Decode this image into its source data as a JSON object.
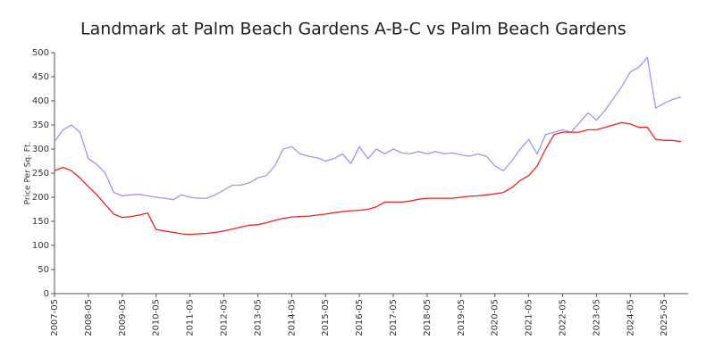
{
  "chart_data": {
    "type": "line",
    "title": "Landmark at Palm Beach Gardens A-B-C vs Palm Beach Gardens",
    "ylabel": "Price Per Sq. Ft.",
    "categories": [
      "2007-05",
      "2007-08",
      "2007-11",
      "2008-02",
      "2008-05",
      "2008-08",
      "2008-11",
      "2009-02",
      "2009-05",
      "2009-08",
      "2009-11",
      "2010-02",
      "2010-05",
      "2010-08",
      "2010-11",
      "2011-02",
      "2011-05",
      "2011-08",
      "2011-11",
      "2012-02",
      "2012-05",
      "2012-08",
      "2012-11",
      "2013-02",
      "2013-05",
      "2013-08",
      "2013-11",
      "2014-02",
      "2014-05",
      "2014-08",
      "2014-11",
      "2015-02",
      "2015-05",
      "2015-08",
      "2015-11",
      "2016-02",
      "2016-05",
      "2016-08",
      "2016-11",
      "2017-02",
      "2017-05",
      "2017-08",
      "2017-11",
      "2018-02",
      "2018-05",
      "2018-08",
      "2018-11",
      "2019-02",
      "2019-05",
      "2019-08",
      "2019-11",
      "2020-02",
      "2020-05",
      "2020-08",
      "2020-11",
      "2021-02",
      "2021-05",
      "2021-08",
      "2021-11",
      "2022-02",
      "2022-05",
      "2022-08",
      "2022-11",
      "2023-02",
      "2023-05",
      "2023-08",
      "2023-11",
      "2024-02",
      "2024-05",
      "2024-08",
      "2024-11",
      "2025-02",
      "2025-05",
      "2025-08",
      "2025-11"
    ],
    "series": [
      {
        "color": "#9999ee",
        "values": [
          315,
          340,
          350,
          335,
          280,
          268,
          250,
          210,
          203,
          205,
          206,
          203,
          200,
          198,
          195,
          205,
          200,
          198,
          198,
          205,
          215,
          225,
          225,
          230,
          240,
          245,
          265,
          300,
          305,
          290,
          285,
          282,
          275,
          280,
          290,
          270,
          305,
          280,
          300,
          290,
          300,
          292,
          290,
          295,
          290,
          295,
          290,
          292,
          288,
          285,
          290,
          285,
          265,
          255,
          275,
          300,
          320,
          290,
          330,
          335,
          340,
          335,
          355,
          375,
          360,
          380,
          405,
          430,
          460,
          470,
          490,
          385,
          395,
          403,
          408
        ]
      },
      {
        "color": "#ee2222",
        "values": [
          255,
          262,
          255,
          240,
          222,
          205,
          185,
          165,
          158,
          160,
          163,
          167,
          133,
          130,
          127,
          124,
          123,
          124,
          125,
          127,
          130,
          134,
          138,
          142,
          143,
          147,
          152,
          156,
          159,
          160,
          161,
          163,
          165,
          168,
          170,
          172,
          173,
          175,
          180,
          190,
          190,
          190,
          192,
          196,
          198,
          198,
          198,
          198,
          200,
          202,
          203,
          205,
          207,
          210,
          220,
          235,
          245,
          265,
          300,
          330,
          335,
          335,
          335,
          340,
          340,
          345,
          350,
          355,
          352,
          345,
          345,
          320,
          318,
          318,
          315
        ]
      }
    ],
    "ylim": [
      0,
      500
    ],
    "yticks": [
      0,
      50,
      100,
      150,
      200,
      250,
      300,
      350,
      400,
      450,
      500
    ]
  }
}
